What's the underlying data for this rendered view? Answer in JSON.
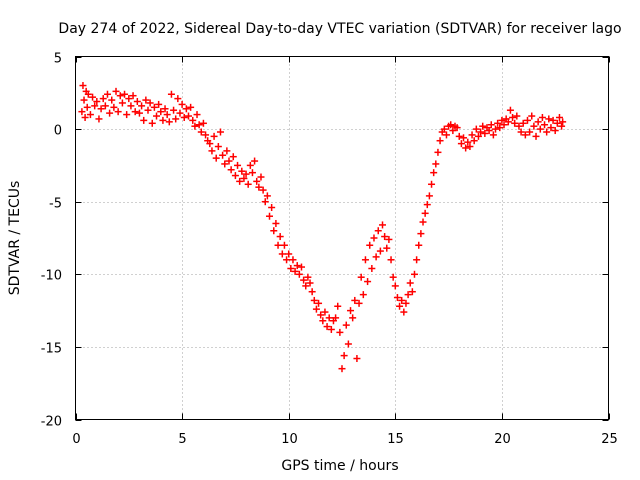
{
  "chart_data": {
    "type": "scatter",
    "title": "Day 274 of 2022, Sidereal Day-to-day VTEC variation (SDTVAR) for receiver lago",
    "xlabel": "GPS time / hours",
    "ylabel": "SDTVAR / TECUs",
    "xlim": [
      0,
      25
    ],
    "ylim": [
      -20,
      5
    ],
    "xticks": [
      0,
      5,
      10,
      15,
      20,
      25
    ],
    "yticks": [
      -20,
      -15,
      -10,
      -5,
      0,
      5
    ],
    "xtick_labels": [
      "0",
      "5",
      "10",
      "15",
      "20",
      "25"
    ],
    "ytick_labels": [
      "-20",
      "-15",
      "-10",
      "-5",
      "0",
      "5"
    ],
    "grid": true,
    "marker": "+",
    "color": "#ff0000",
    "series": [
      {
        "name": "SDTVAR",
        "points": [
          [
            0.3,
            1.2
          ],
          [
            0.35,
            3.0
          ],
          [
            0.4,
            2.0
          ],
          [
            0.45,
            0.8
          ],
          [
            0.5,
            2.6
          ],
          [
            0.55,
            1.5
          ],
          [
            0.6,
            2.4
          ],
          [
            0.7,
            1.0
          ],
          [
            0.8,
            2.2
          ],
          [
            0.9,
            1.6
          ],
          [
            1.0,
            1.9
          ],
          [
            1.1,
            0.7
          ],
          [
            1.2,
            1.4
          ],
          [
            1.3,
            2.1
          ],
          [
            1.4,
            1.6
          ],
          [
            1.5,
            2.4
          ],
          [
            1.6,
            1.1
          ],
          [
            1.7,
            2.0
          ],
          [
            1.8,
            1.5
          ],
          [
            1.9,
            2.6
          ],
          [
            2.0,
            1.2
          ],
          [
            2.1,
            2.3
          ],
          [
            2.2,
            1.8
          ],
          [
            2.3,
            2.4
          ],
          [
            2.4,
            1.0
          ],
          [
            2.5,
            2.1
          ],
          [
            2.6,
            1.6
          ],
          [
            2.7,
            2.3
          ],
          [
            2.8,
            1.2
          ],
          [
            2.9,
            1.9
          ],
          [
            3.0,
            1.1
          ],
          [
            3.1,
            1.6
          ],
          [
            3.2,
            0.6
          ],
          [
            3.3,
            2.0
          ],
          [
            3.4,
            1.3
          ],
          [
            3.5,
            1.8
          ],
          [
            3.6,
            0.4
          ],
          [
            3.7,
            1.5
          ],
          [
            3.8,
            0.9
          ],
          [
            3.9,
            1.7
          ],
          [
            4.0,
            1.2
          ],
          [
            4.1,
            0.6
          ],
          [
            4.2,
            1.4
          ],
          [
            4.3,
            1.0
          ],
          [
            4.4,
            0.5
          ],
          [
            4.5,
            2.4
          ],
          [
            4.6,
            1.3
          ],
          [
            4.7,
            0.7
          ],
          [
            4.8,
            2.1
          ],
          [
            4.9,
            1.1
          ],
          [
            5.0,
            1.7
          ],
          [
            5.1,
            0.8
          ],
          [
            5.2,
            1.4
          ],
          [
            5.3,
            0.9
          ],
          [
            5.4,
            1.5
          ],
          [
            5.5,
            0.6
          ],
          [
            5.6,
            0.2
          ],
          [
            5.7,
            1.0
          ],
          [
            5.8,
            0.3
          ],
          [
            5.9,
            -0.2
          ],
          [
            6.0,
            0.4
          ],
          [
            6.1,
            -0.4
          ],
          [
            6.2,
            -0.8
          ],
          [
            6.3,
            -1.0
          ],
          [
            6.4,
            -1.5
          ],
          [
            6.5,
            -0.5
          ],
          [
            6.6,
            -2.0
          ],
          [
            6.7,
            -1.2
          ],
          [
            6.8,
            -0.2
          ],
          [
            6.9,
            -1.8
          ],
          [
            7.0,
            -2.4
          ],
          [
            7.1,
            -1.5
          ],
          [
            7.2,
            -2.2
          ],
          [
            7.3,
            -2.8
          ],
          [
            7.4,
            -1.9
          ],
          [
            7.5,
            -3.2
          ],
          [
            7.6,
            -2.5
          ],
          [
            7.7,
            -3.6
          ],
          [
            7.8,
            -2.9
          ],
          [
            7.9,
            -3.4
          ],
          [
            8.0,
            -3.1
          ],
          [
            8.1,
            -3.8
          ],
          [
            8.2,
            -2.5
          ],
          [
            8.3,
            -3.0
          ],
          [
            8.4,
            -2.2
          ],
          [
            8.5,
            -3.6
          ],
          [
            8.6,
            -4.0
          ],
          [
            8.7,
            -3.3
          ],
          [
            8.8,
            -4.2
          ],
          [
            8.9,
            -5.0
          ],
          [
            9.0,
            -4.6
          ],
          [
            9.1,
            -6.0
          ],
          [
            9.2,
            -5.4
          ],
          [
            9.3,
            -7.0
          ],
          [
            9.4,
            -6.5
          ],
          [
            9.5,
            -8.0
          ],
          [
            9.6,
            -7.4
          ],
          [
            9.7,
            -8.6
          ],
          [
            9.8,
            -8.0
          ],
          [
            9.9,
            -9.0
          ],
          [
            10.0,
            -8.6
          ],
          [
            10.1,
            -9.6
          ],
          [
            10.2,
            -9.0
          ],
          [
            10.3,
            -9.8
          ],
          [
            10.4,
            -9.4
          ],
          [
            10.5,
            -10.0
          ],
          [
            10.6,
            -9.5
          ],
          [
            10.7,
            -10.4
          ],
          [
            10.8,
            -10.8
          ],
          [
            10.9,
            -10.2
          ],
          [
            11.0,
            -10.6
          ],
          [
            11.1,
            -11.2
          ],
          [
            11.2,
            -11.8
          ],
          [
            11.3,
            -12.4
          ],
          [
            11.4,
            -12.0
          ],
          [
            11.5,
            -12.8
          ],
          [
            11.6,
            -13.2
          ],
          [
            11.7,
            -12.6
          ],
          [
            11.8,
            -13.6
          ],
          [
            11.9,
            -13.0
          ],
          [
            12.0,
            -13.8
          ],
          [
            12.1,
            -13.2
          ],
          [
            12.2,
            -13.0
          ],
          [
            12.3,
            -12.2
          ],
          [
            12.4,
            -14.0
          ],
          [
            12.5,
            -16.5
          ],
          [
            12.6,
            -15.6
          ],
          [
            12.7,
            -13.5
          ],
          [
            12.8,
            -14.8
          ],
          [
            12.9,
            -12.5
          ],
          [
            13.0,
            -13.0
          ],
          [
            13.1,
            -11.8
          ],
          [
            13.2,
            -15.8
          ],
          [
            13.3,
            -12.0
          ],
          [
            13.4,
            -10.2
          ],
          [
            13.5,
            -11.4
          ],
          [
            13.6,
            -9.0
          ],
          [
            13.7,
            -10.5
          ],
          [
            13.8,
            -8.0
          ],
          [
            13.9,
            -9.6
          ],
          [
            14.0,
            -7.5
          ],
          [
            14.1,
            -8.8
          ],
          [
            14.2,
            -7.0
          ],
          [
            14.3,
            -8.4
          ],
          [
            14.4,
            -6.6
          ],
          [
            14.5,
            -7.4
          ],
          [
            14.6,
            -8.2
          ],
          [
            14.7,
            -7.6
          ],
          [
            14.8,
            -9.0
          ],
          [
            14.9,
            -10.2
          ],
          [
            15.0,
            -10.8
          ],
          [
            15.1,
            -11.6
          ],
          [
            15.2,
            -12.2
          ],
          [
            15.3,
            -11.8
          ],
          [
            15.4,
            -12.6
          ],
          [
            15.5,
            -12.0
          ],
          [
            15.6,
            -11.4
          ],
          [
            15.7,
            -10.6
          ],
          [
            15.8,
            -11.2
          ],
          [
            15.9,
            -10.0
          ],
          [
            16.0,
            -9.0
          ],
          [
            16.1,
            -8.0
          ],
          [
            16.2,
            -7.2
          ],
          [
            16.3,
            -6.4
          ],
          [
            16.4,
            -5.8
          ],
          [
            16.5,
            -5.2
          ],
          [
            16.6,
            -4.6
          ],
          [
            16.7,
            -3.8
          ],
          [
            16.8,
            -3.0
          ],
          [
            16.9,
            -2.4
          ],
          [
            17.0,
            -1.6
          ],
          [
            17.1,
            -0.8
          ],
          [
            17.2,
            -0.2
          ],
          [
            17.3,
            0.0
          ],
          [
            17.4,
            -0.4
          ],
          [
            17.5,
            0.2
          ],
          [
            17.6,
            0.3
          ],
          [
            17.7,
            -0.1
          ],
          [
            17.8,
            0.2
          ],
          [
            17.9,
            0.1
          ],
          [
            18.0,
            -0.5
          ],
          [
            18.1,
            -1.0
          ],
          [
            18.2,
            -0.6
          ],
          [
            18.3,
            -1.3
          ],
          [
            18.4,
            -0.9
          ],
          [
            18.5,
            -1.2
          ],
          [
            18.6,
            -0.4
          ],
          [
            18.7,
            -0.8
          ],
          [
            18.8,
            0.0
          ],
          [
            18.9,
            -0.5
          ],
          [
            19.0,
            -0.2
          ],
          [
            19.1,
            0.2
          ],
          [
            19.2,
            -0.3
          ],
          [
            19.3,
            0.1
          ],
          [
            19.4,
            -0.1
          ],
          [
            19.5,
            0.3
          ],
          [
            19.6,
            -0.4
          ],
          [
            19.7,
            0.0
          ],
          [
            19.8,
            0.4
          ],
          [
            19.9,
            0.1
          ],
          [
            20.0,
            0.6
          ],
          [
            20.1,
            0.3
          ],
          [
            20.2,
            0.7
          ],
          [
            20.3,
            0.5
          ],
          [
            20.4,
            1.3
          ],
          [
            20.5,
            0.8
          ],
          [
            20.6,
            0.4
          ],
          [
            20.7,
            0.9
          ],
          [
            20.8,
            0.2
          ],
          [
            20.9,
            -0.2
          ],
          [
            21.0,
            0.4
          ],
          [
            21.1,
            -0.4
          ],
          [
            21.2,
            0.6
          ],
          [
            21.3,
            -0.2
          ],
          [
            21.4,
            0.9
          ],
          [
            21.5,
            0.2
          ],
          [
            21.6,
            -0.5
          ],
          [
            21.7,
            0.5
          ],
          [
            21.8,
            0.0
          ],
          [
            21.9,
            0.8
          ],
          [
            22.0,
            0.3
          ],
          [
            22.1,
            -0.2
          ],
          [
            22.2,
            0.7
          ],
          [
            22.3,
            0.1
          ],
          [
            22.4,
            0.6
          ],
          [
            22.5,
            -0.1
          ],
          [
            22.6,
            0.4
          ],
          [
            22.7,
            0.8
          ],
          [
            22.8,
            0.2
          ],
          [
            22.85,
            0.5
          ]
        ]
      }
    ]
  }
}
